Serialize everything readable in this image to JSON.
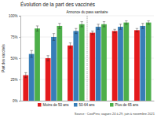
{
  "chart_data": {
    "type": "bar",
    "title": "Évolution de la part des vaccinés",
    "y_label": "Part des vaccinés",
    "source": "Source : CoviPrev, vagues 24 à 29, juin à novembre 2021",
    "categories": [
      null,
      null,
      null,
      null,
      null,
      null
    ],
    "series": [
      {
        "name": "Moins de 50 ans",
        "color": "#e41a1c",
        "values": [
          30,
          50,
          65,
          80,
          82,
          83
        ],
        "errors": [
          3,
          3,
          3,
          2,
          2,
          2
        ]
      },
      {
        "name": "50-64 ans",
        "color": "#377eb8",
        "values": [
          55,
          75,
          82,
          87,
          87,
          88
        ],
        "errors": [
          4,
          4,
          3,
          3,
          3,
          3
        ]
      },
      {
        "name": "Plus de 65 ans",
        "color": "#4daf4a",
        "values": [
          85,
          88,
          90,
          90,
          92,
          92
        ],
        "errors": [
          3,
          3,
          3,
          3,
          2,
          2
        ]
      }
    ],
    "annotations": [
      {
        "text": "Annonce du pass sanitaire",
        "x": 2.5
      }
    ],
    "ylim": [
      0,
      100
    ],
    "yticks": [
      {
        "value": 0,
        "label": "0%"
      },
      {
        "value": 25,
        "label": "25%"
      },
      {
        "value": 50,
        "label": "50%"
      },
      {
        "value": 75,
        "label": "75%"
      },
      {
        "value": 100,
        "label": "100%"
      }
    ],
    "grid": true,
    "legend": "bottom",
    "tick_labels": "y"
  }
}
